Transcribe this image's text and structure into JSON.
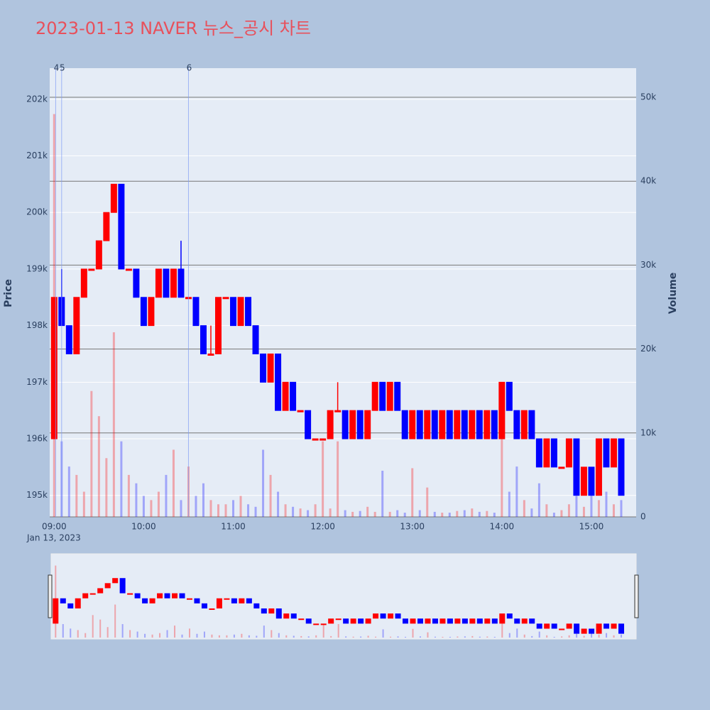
{
  "chart_data": {
    "type": "candlestick",
    "title": "2023-01-13 NAVER 뉴스_공시 차트",
    "y_label": "Price",
    "y2_label": "Volume",
    "x_date_label": "Jan 13, 2023",
    "increasing_color": "#ff0000",
    "decreasing_color": "#0000ff",
    "x": [
      "09:00",
      "09:05",
      "09:10",
      "09:15",
      "09:20",
      "09:25",
      "09:30",
      "09:35",
      "09:40",
      "09:45",
      "09:50",
      "09:55",
      "10:00",
      "10:05",
      "10:10",
      "10:15",
      "10:20",
      "10:25",
      "10:30",
      "10:35",
      "10:40",
      "10:45",
      "10:50",
      "10:55",
      "11:00",
      "11:05",
      "11:10",
      "11:15",
      "11:20",
      "11:25",
      "11:30",
      "11:35",
      "11:40",
      "11:45",
      "11:50",
      "11:55",
      "12:00",
      "12:05",
      "12:10",
      "12:15",
      "12:20",
      "12:25",
      "12:30",
      "12:35",
      "12:40",
      "12:45",
      "12:50",
      "12:55",
      "13:00",
      "13:05",
      "13:10",
      "13:15",
      "13:20",
      "13:25",
      "13:30",
      "13:35",
      "13:40",
      "13:45",
      "13:50",
      "13:55",
      "14:00",
      "14:05",
      "14:10",
      "14:15",
      "14:20",
      "14:25",
      "14:30",
      "14:35",
      "14:40",
      "14:45",
      "14:50",
      "14:55",
      "15:00",
      "15:05",
      "15:10",
      "15:15",
      "15:20"
    ],
    "open": [
      196000,
      198500,
      198000,
      197500,
      198500,
      199000,
      199000,
      199500,
      200000,
      200500,
      199000,
      199000,
      198500,
      198000,
      198500,
      199000,
      198500,
      199000,
      198500,
      198500,
      198000,
      197500,
      197500,
      198500,
      198500,
      198000,
      198500,
      198000,
      197500,
      197000,
      197500,
      196500,
      197000,
      196500,
      196500,
      196000,
      196000,
      196000,
      196500,
      196500,
      196000,
      196500,
      196000,
      196500,
      197000,
      196500,
      197000,
      196500,
      196000,
      196500,
      196000,
      196500,
      196000,
      196500,
      196000,
      196500,
      196000,
      196500,
      196000,
      196500,
      196000,
      197000,
      196500,
      196000,
      196500,
      196000,
      195500,
      196000,
      195500,
      195500,
      196000,
      195000,
      195500,
      195000,
      196000,
      195500,
      196000
    ],
    "high": [
      198500,
      199000,
      198000,
      198500,
      199000,
      199000,
      199500,
      200000,
      200500,
      200500,
      199000,
      199000,
      198500,
      198500,
      199000,
      199000,
      199000,
      199500,
      198500,
      198500,
      198000,
      198000,
      198500,
      198500,
      198500,
      198500,
      198500,
      198000,
      197500,
      197500,
      197500,
      197000,
      197000,
      196500,
      196500,
      196000,
      196000,
      196500,
      197000,
      196500,
      196500,
      196500,
      196500,
      197000,
      197000,
      197000,
      197000,
      196500,
      196500,
      196500,
      196500,
      196500,
      196500,
      196500,
      196500,
      196500,
      196500,
      196500,
      196500,
      196500,
      197000,
      197000,
      196500,
      196500,
      196500,
      196000,
      196000,
      196000,
      195500,
      196000,
      196000,
      195500,
      195500,
      196000,
      196000,
      196000,
      196000
    ],
    "low": [
      196000,
      198000,
      197500,
      197500,
      198500,
      199000,
      199000,
      199500,
      200000,
      199000,
      199000,
      198500,
      198000,
      198000,
      198500,
      198500,
      198500,
      198500,
      198500,
      198000,
      197500,
      197500,
      197500,
      198500,
      198000,
      198000,
      198000,
      197500,
      197000,
      197000,
      196500,
      196500,
      196500,
      196500,
      196000,
      196000,
      196000,
      196000,
      196500,
      196000,
      196000,
      196000,
      196000,
      196500,
      196500,
      196500,
      196500,
      196000,
      196000,
      196000,
      196000,
      196000,
      196000,
      196000,
      196000,
      196000,
      196000,
      196000,
      196000,
      196000,
      196000,
      196500,
      196000,
      196000,
      196000,
      195500,
      195500,
      195500,
      195500,
      195500,
      195000,
      195000,
      195000,
      195000,
      195500,
      195500,
      195000
    ],
    "close": [
      198500,
      198000,
      197500,
      198500,
      199000,
      199000,
      199500,
      200000,
      200500,
      199000,
      199000,
      198500,
      198000,
      198500,
      199000,
      198500,
      199000,
      198500,
      198500,
      198000,
      197500,
      197500,
      198500,
      198500,
      198000,
      198500,
      198000,
      197500,
      197000,
      197500,
      196500,
      197000,
      196500,
      196500,
      196000,
      196000,
      196000,
      196500,
      196500,
      196000,
      196500,
      196000,
      196500,
      197000,
      196500,
      197000,
      196500,
      196000,
      196500,
      196000,
      196500,
      196000,
      196500,
      196000,
      196500,
      196000,
      196500,
      196000,
      196500,
      196000,
      197000,
      196500,
      196000,
      196500,
      196000,
      195500,
      196000,
      195500,
      195500,
      196000,
      195000,
      195500,
      195000,
      196000,
      195500,
      196000,
      195000
    ],
    "volume": [
      48000,
      9000,
      6000,
      5000,
      3000,
      15000,
      12000,
      7000,
      22000,
      9000,
      5000,
      4000,
      2500,
      2000,
      3000,
      5000,
      8000,
      2000,
      6000,
      2500,
      4000,
      2000,
      1500,
      1500,
      2000,
      2500,
      1500,
      1200,
      8000,
      5000,
      3000,
      1500,
      1200,
      1000,
      800,
      1500,
      9000,
      1000,
      9000,
      800,
      600,
      700,
      1200,
      600,
      5500,
      600,
      800,
      500,
      5800,
      800,
      3500,
      600,
      500,
      500,
      700,
      800,
      1000,
      600,
      700,
      500,
      10000,
      3000,
      6000,
      2000,
      1000,
      4000,
      1500,
      500,
      800,
      1500,
      2500,
      1200,
      4000,
      2000,
      3000,
      1500,
      2000
    ],
    "xlim": [
      "08:57",
      "15:30"
    ],
    "xticks": [
      "09:00",
      "10:00",
      "11:00",
      "12:00",
      "13:00",
      "14:00",
      "15:00"
    ],
    "ylim": [
      194620,
      202550
    ],
    "yticks": [
      {
        "value": 195000,
        "label": "195k"
      },
      {
        "value": 196000,
        "label": "196k"
      },
      {
        "value": 197000,
        "label": "197k"
      },
      {
        "value": 198000,
        "label": "198k"
      },
      {
        "value": 199000,
        "label": "199k"
      },
      {
        "value": 200000,
        "label": "200k"
      },
      {
        "value": 201000,
        "label": "201k"
      },
      {
        "value": 202000,
        "label": "202k"
      }
    ],
    "y2lim": [
      0,
      53470
    ],
    "y2ticks": [
      0,
      {
        "value": 10000,
        "label": "10k"
      },
      {
        "value": 20000,
        "label": "20k"
      },
      {
        "value": 30000,
        "label": "30k"
      },
      {
        "value": 40000,
        "label": "40k"
      },
      {
        "value": 50000,
        "label": "50k"
      }
    ],
    "annotations": [
      {
        "x": "09:01",
        "text": "4"
      },
      {
        "x": "09:05",
        "text": "5"
      },
      {
        "x": "10:30",
        "text": "6"
      }
    ]
  }
}
